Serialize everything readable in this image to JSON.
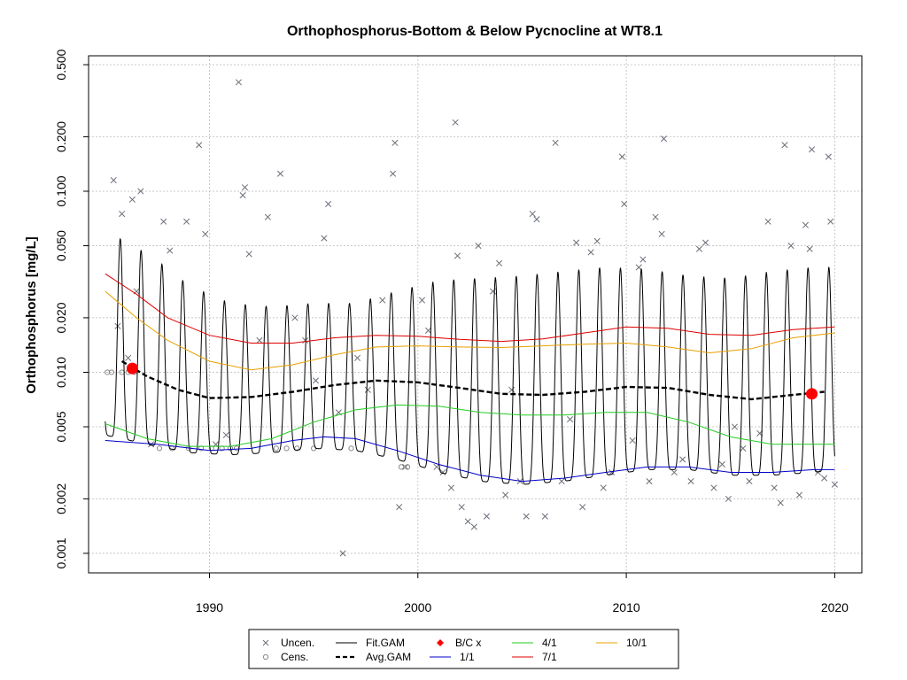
{
  "chart_data": {
    "type": "scatter",
    "title": "Orthophosphorus-Bottom & Below Pycnocline at WT8.1",
    "xlabel": "",
    "ylabel": "Orthophosphorus [mg/L]",
    "y_scale": "log",
    "xlim": [
      1984.2,
      2021.3
    ],
    "ylim": [
      0.00078,
      0.56
    ],
    "x_ticks": [
      1990,
      2000,
      2010,
      2020
    ],
    "x_tick_labels": [
      "1990",
      "2000",
      "2010",
      "2020"
    ],
    "y_ticks": [
      0.001,
      0.002,
      0.005,
      0.01,
      0.02,
      0.05,
      0.1,
      0.2,
      0.5
    ],
    "y_tick_labels": [
      "0.001",
      "0.002",
      "0.005",
      "0.010",
      "0.020",
      "0.050",
      "0.100",
      "0.200",
      "0.500"
    ],
    "grid": true,
    "legend_position": "bottom",
    "legend": [
      {
        "label": "Uncen.",
        "kind": "x-marker",
        "color": "#6a6f78"
      },
      {
        "label": "Cens.",
        "kind": "o-marker",
        "color": "#8a8a8a"
      },
      {
        "label": "Fit.GAM",
        "kind": "line",
        "color": "#000000"
      },
      {
        "label": "Avg.GAM",
        "kind": "dashed-line",
        "color": "#000000"
      },
      {
        "label": "B/C x",
        "kind": "diamond-marker",
        "color": "#ff0000"
      },
      {
        "label": "1/1",
        "kind": "line",
        "color": "#0000c8"
      },
      {
        "label": "4/1",
        "kind": "line",
        "color": "#22cc22"
      },
      {
        "label": "7/1",
        "kind": "line",
        "color": "#dd0000"
      },
      {
        "label": "10/1",
        "kind": "line",
        "color": "#e8a000"
      }
    ],
    "series": [
      {
        "name": "Uncen.",
        "type": "scatter",
        "points": [
          [
            1985.4,
            0.115
          ],
          [
            1985.8,
            0.075
          ],
          [
            1986.3,
            0.09
          ],
          [
            1986.7,
            0.1
          ],
          [
            1985.6,
            0.018
          ],
          [
            1986.1,
            0.012
          ],
          [
            1986.5,
            0.028
          ],
          [
            1987.2,
            0.004
          ],
          [
            1987.8,
            0.068
          ],
          [
            1988.1,
            0.047
          ],
          [
            1988.9,
            0.068
          ],
          [
            1989.5,
            0.18
          ],
          [
            1989.8,
            0.058
          ],
          [
            1990.3,
            0.004
          ],
          [
            1990.8,
            0.0045
          ],
          [
            1991.4,
            0.4
          ],
          [
            1991.6,
            0.095
          ],
          [
            1991.7,
            0.105
          ],
          [
            1991.9,
            0.045
          ],
          [
            1992.4,
            0.015
          ],
          [
            1992.8,
            0.072
          ],
          [
            1993.4,
            0.125
          ],
          [
            1994.1,
            0.02
          ],
          [
            1994.6,
            0.015
          ],
          [
            1995.1,
            0.009
          ],
          [
            1995.5,
            0.055
          ],
          [
            1995.7,
            0.085
          ],
          [
            1996.2,
            0.006
          ],
          [
            1996.4,
            0.001
          ],
          [
            1997.1,
            0.012
          ],
          [
            1997.6,
            0.008
          ],
          [
            1998.3,
            0.025
          ],
          [
            1998.8,
            0.125
          ],
          [
            1998.9,
            0.185
          ],
          [
            1999.1,
            0.0018
          ],
          [
            1999.4,
            0.003
          ],
          [
            2000.2,
            0.025
          ],
          [
            2000.5,
            0.017
          ],
          [
            2000.9,
            0.003
          ],
          [
            2001.2,
            0.0028
          ],
          [
            2001.6,
            0.0023
          ],
          [
            2001.8,
            0.24
          ],
          [
            2001.9,
            0.044
          ],
          [
            2002.1,
            0.0018
          ],
          [
            2002.4,
            0.0015
          ],
          [
            2002.7,
            0.0014
          ],
          [
            2002.9,
            0.05
          ],
          [
            2003.3,
            0.0016
          ],
          [
            2003.6,
            0.028
          ],
          [
            2003.9,
            0.04
          ],
          [
            2004.2,
            0.0021
          ],
          [
            2004.5,
            0.008
          ],
          [
            2004.9,
            0.0025
          ],
          [
            2005.2,
            0.0016
          ],
          [
            2005.5,
            0.075
          ],
          [
            2005.7,
            0.07
          ],
          [
            2006.1,
            0.0016
          ],
          [
            2006.6,
            0.185
          ],
          [
            2006.9,
            0.0025
          ],
          [
            2007.3,
            0.0055
          ],
          [
            2007.6,
            0.052
          ],
          [
            2007.9,
            0.0018
          ],
          [
            2008.3,
            0.046
          ],
          [
            2008.6,
            0.053
          ],
          [
            2008.9,
            0.0023
          ],
          [
            2009.3,
            0.0028
          ],
          [
            2009.8,
            0.155
          ],
          [
            2009.9,
            0.085
          ],
          [
            2010.3,
            0.0042
          ],
          [
            2010.6,
            0.038
          ],
          [
            2010.8,
            0.042
          ],
          [
            2011.1,
            0.0025
          ],
          [
            2011.4,
            0.072
          ],
          [
            2011.7,
            0.058
          ],
          [
            2011.8,
            0.195
          ],
          [
            2012.3,
            0.0028
          ],
          [
            2012.7,
            0.0033
          ],
          [
            2013.1,
            0.0025
          ],
          [
            2013.5,
            0.048
          ],
          [
            2013.8,
            0.052
          ],
          [
            2014.2,
            0.0023
          ],
          [
            2014.6,
            0.0031
          ],
          [
            2014.9,
            0.002
          ],
          [
            2015.2,
            0.005
          ],
          [
            2015.6,
            0.0038
          ],
          [
            2015.9,
            0.0025
          ],
          [
            2016.4,
            0.0046
          ],
          [
            2016.8,
            0.068
          ],
          [
            2017.1,
            0.0023
          ],
          [
            2017.4,
            0.0019
          ],
          [
            2017.6,
            0.18
          ],
          [
            2017.9,
            0.05
          ],
          [
            2018.3,
            0.0021
          ],
          [
            2018.6,
            0.065
          ],
          [
            2018.8,
            0.048
          ],
          [
            2018.9,
            0.17
          ],
          [
            2019.2,
            0.0028
          ],
          [
            2019.5,
            0.0026
          ],
          [
            2019.7,
            0.155
          ],
          [
            2019.8,
            0.068
          ],
          [
            2020.0,
            0.0024
          ]
        ]
      },
      {
        "name": "Cens.",
        "type": "scatter",
        "points": [
          [
            1985.1,
            0.01
          ],
          [
            1985.3,
            0.01
          ],
          [
            1985.8,
            0.01
          ],
          [
            1986.1,
            0.01
          ],
          [
            1986.4,
            0.01
          ],
          [
            1987.6,
            0.0038
          ],
          [
            1988.2,
            0.0038
          ],
          [
            1989.0,
            0.0038
          ],
          [
            1989.6,
            0.0038
          ],
          [
            1990.1,
            0.0038
          ],
          [
            1990.6,
            0.0038
          ],
          [
            1991.0,
            0.0038
          ],
          [
            1991.3,
            0.0038
          ],
          [
            1993.2,
            0.0038
          ],
          [
            1993.7,
            0.0038
          ],
          [
            1994.2,
            0.0038
          ],
          [
            1995.0,
            0.0038
          ],
          [
            1996.8,
            0.0038
          ],
          [
            1999.2,
            0.003
          ],
          [
            1999.5,
            0.003
          ]
        ]
      },
      {
        "name": "B/C x",
        "type": "point",
        "points": [
          [
            1986.3,
            0.0105
          ],
          [
            2018.9,
            0.0076
          ]
        ]
      },
      {
        "name": "1/1",
        "type": "line",
        "points": [
          [
            1985.0,
            0.0042
          ],
          [
            1987.5,
            0.004
          ],
          [
            1990.0,
            0.0037
          ],
          [
            1992.0,
            0.0038
          ],
          [
            1994.0,
            0.0042
          ],
          [
            1995.5,
            0.0044
          ],
          [
            1997.0,
            0.0043
          ],
          [
            1999.0,
            0.0037
          ],
          [
            2001.0,
            0.0031
          ],
          [
            2003.0,
            0.0027
          ],
          [
            2005.0,
            0.0025
          ],
          [
            2007.0,
            0.0026
          ],
          [
            2009.0,
            0.0028
          ],
          [
            2011.0,
            0.003
          ],
          [
            2013.0,
            0.003
          ],
          [
            2015.0,
            0.0028
          ],
          [
            2017.0,
            0.0028
          ],
          [
            2019.0,
            0.0029
          ],
          [
            2020.0,
            0.0029
          ]
        ]
      },
      {
        "name": "4/1",
        "type": "line",
        "points": [
          [
            1985.0,
            0.0052
          ],
          [
            1987.0,
            0.0043
          ],
          [
            1989.0,
            0.0039
          ],
          [
            1991.0,
            0.0039
          ],
          [
            1993.0,
            0.0043
          ],
          [
            1995.0,
            0.0053
          ],
          [
            1997.0,
            0.0062
          ],
          [
            1999.0,
            0.0066
          ],
          [
            2001.0,
            0.0065
          ],
          [
            2003.0,
            0.006
          ],
          [
            2005.0,
            0.0058
          ],
          [
            2007.0,
            0.0058
          ],
          [
            2009.0,
            0.006
          ],
          [
            2011.0,
            0.006
          ],
          [
            2013.0,
            0.0053
          ],
          [
            2015.0,
            0.0044
          ],
          [
            2017.0,
            0.004
          ],
          [
            2019.0,
            0.004
          ],
          [
            2020.0,
            0.004
          ]
        ]
      },
      {
        "name": "7/1",
        "type": "line",
        "points": [
          [
            1985.0,
            0.035
          ],
          [
            1986.5,
            0.027
          ],
          [
            1988.0,
            0.02
          ],
          [
            1990.0,
            0.016
          ],
          [
            1992.0,
            0.0145
          ],
          [
            1994.0,
            0.0145
          ],
          [
            1996.0,
            0.0155
          ],
          [
            1998.0,
            0.016
          ],
          [
            2000.0,
            0.0158
          ],
          [
            2002.0,
            0.0152
          ],
          [
            2004.0,
            0.0148
          ],
          [
            2006.0,
            0.0153
          ],
          [
            2008.0,
            0.0165
          ],
          [
            2010.0,
            0.0178
          ],
          [
            2012.0,
            0.0175
          ],
          [
            2014.0,
            0.0162
          ],
          [
            2016.0,
            0.016
          ],
          [
            2018.0,
            0.0172
          ],
          [
            2020.0,
            0.0178
          ]
        ]
      },
      {
        "name": "10/1",
        "type": "line",
        "points": [
          [
            1985.0,
            0.028
          ],
          [
            1986.5,
            0.02
          ],
          [
            1988.0,
            0.015
          ],
          [
            1990.0,
            0.0115
          ],
          [
            1992.0,
            0.0103
          ],
          [
            1994.0,
            0.011
          ],
          [
            1996.0,
            0.0125
          ],
          [
            1998.0,
            0.0138
          ],
          [
            2000.0,
            0.014
          ],
          [
            2002.0,
            0.0138
          ],
          [
            2004.0,
            0.0137
          ],
          [
            2006.0,
            0.014
          ],
          [
            2008.0,
            0.0143
          ],
          [
            2010.0,
            0.0145
          ],
          [
            2012.0,
            0.0138
          ],
          [
            2014.0,
            0.0128
          ],
          [
            2016.0,
            0.0135
          ],
          [
            2018.0,
            0.0155
          ],
          [
            2020.0,
            0.0165
          ]
        ]
      },
      {
        "name": "Avg.GAM",
        "type": "line",
        "points": [
          [
            1985.8,
            0.0115
          ],
          [
            1987.0,
            0.0095
          ],
          [
            1988.5,
            0.008
          ],
          [
            1990.0,
            0.0072
          ],
          [
            1992.0,
            0.0073
          ],
          [
            1994.0,
            0.0078
          ],
          [
            1996.0,
            0.0085
          ],
          [
            1998.0,
            0.009
          ],
          [
            2000.0,
            0.0088
          ],
          [
            2002.0,
            0.0082
          ],
          [
            2004.0,
            0.0076
          ],
          [
            2006.0,
            0.0075
          ],
          [
            2008.0,
            0.0078
          ],
          [
            2010.0,
            0.0083
          ],
          [
            2012.0,
            0.0082
          ],
          [
            2014.0,
            0.0075
          ],
          [
            2016.0,
            0.0071
          ],
          [
            2018.0,
            0.0075
          ],
          [
            2019.5,
            0.0078
          ]
        ]
      },
      {
        "name": "Fit.GAM",
        "type": "seasonal-line",
        "period_years": 1,
        "peak_month_fraction": 0.72,
        "envelope_points": [
          {
            "x": 1985.0,
            "low": 0.0045,
            "high": 0.06
          },
          {
            "x": 1987.0,
            "low": 0.004,
            "high": 0.045
          },
          {
            "x": 1989.0,
            "low": 0.0036,
            "high": 0.03
          },
          {
            "x": 1991.0,
            "low": 0.0035,
            "high": 0.024
          },
          {
            "x": 1993.0,
            "low": 0.0036,
            "high": 0.023
          },
          {
            "x": 1995.0,
            "low": 0.0038,
            "high": 0.024
          },
          {
            "x": 1997.0,
            "low": 0.0037,
            "high": 0.024
          },
          {
            "x": 1999.0,
            "low": 0.0033,
            "high": 0.028
          },
          {
            "x": 2001.0,
            "low": 0.0028,
            "high": 0.032
          },
          {
            "x": 2003.0,
            "low": 0.0025,
            "high": 0.033
          },
          {
            "x": 2005.0,
            "low": 0.0024,
            "high": 0.034
          },
          {
            "x": 2007.0,
            "low": 0.0025,
            "high": 0.036
          },
          {
            "x": 2009.0,
            "low": 0.0027,
            "high": 0.038
          },
          {
            "x": 2011.0,
            "low": 0.0029,
            "high": 0.037
          },
          {
            "x": 2013.0,
            "low": 0.0029,
            "high": 0.034
          },
          {
            "x": 2015.0,
            "low": 0.0027,
            "high": 0.033
          },
          {
            "x": 2017.0,
            "low": 0.0027,
            "high": 0.036
          },
          {
            "x": 2019.0,
            "low": 0.0028,
            "high": 0.038
          },
          {
            "x": 2020.0,
            "low": 0.0029,
            "high": 0.038
          }
        ]
      }
    ]
  }
}
